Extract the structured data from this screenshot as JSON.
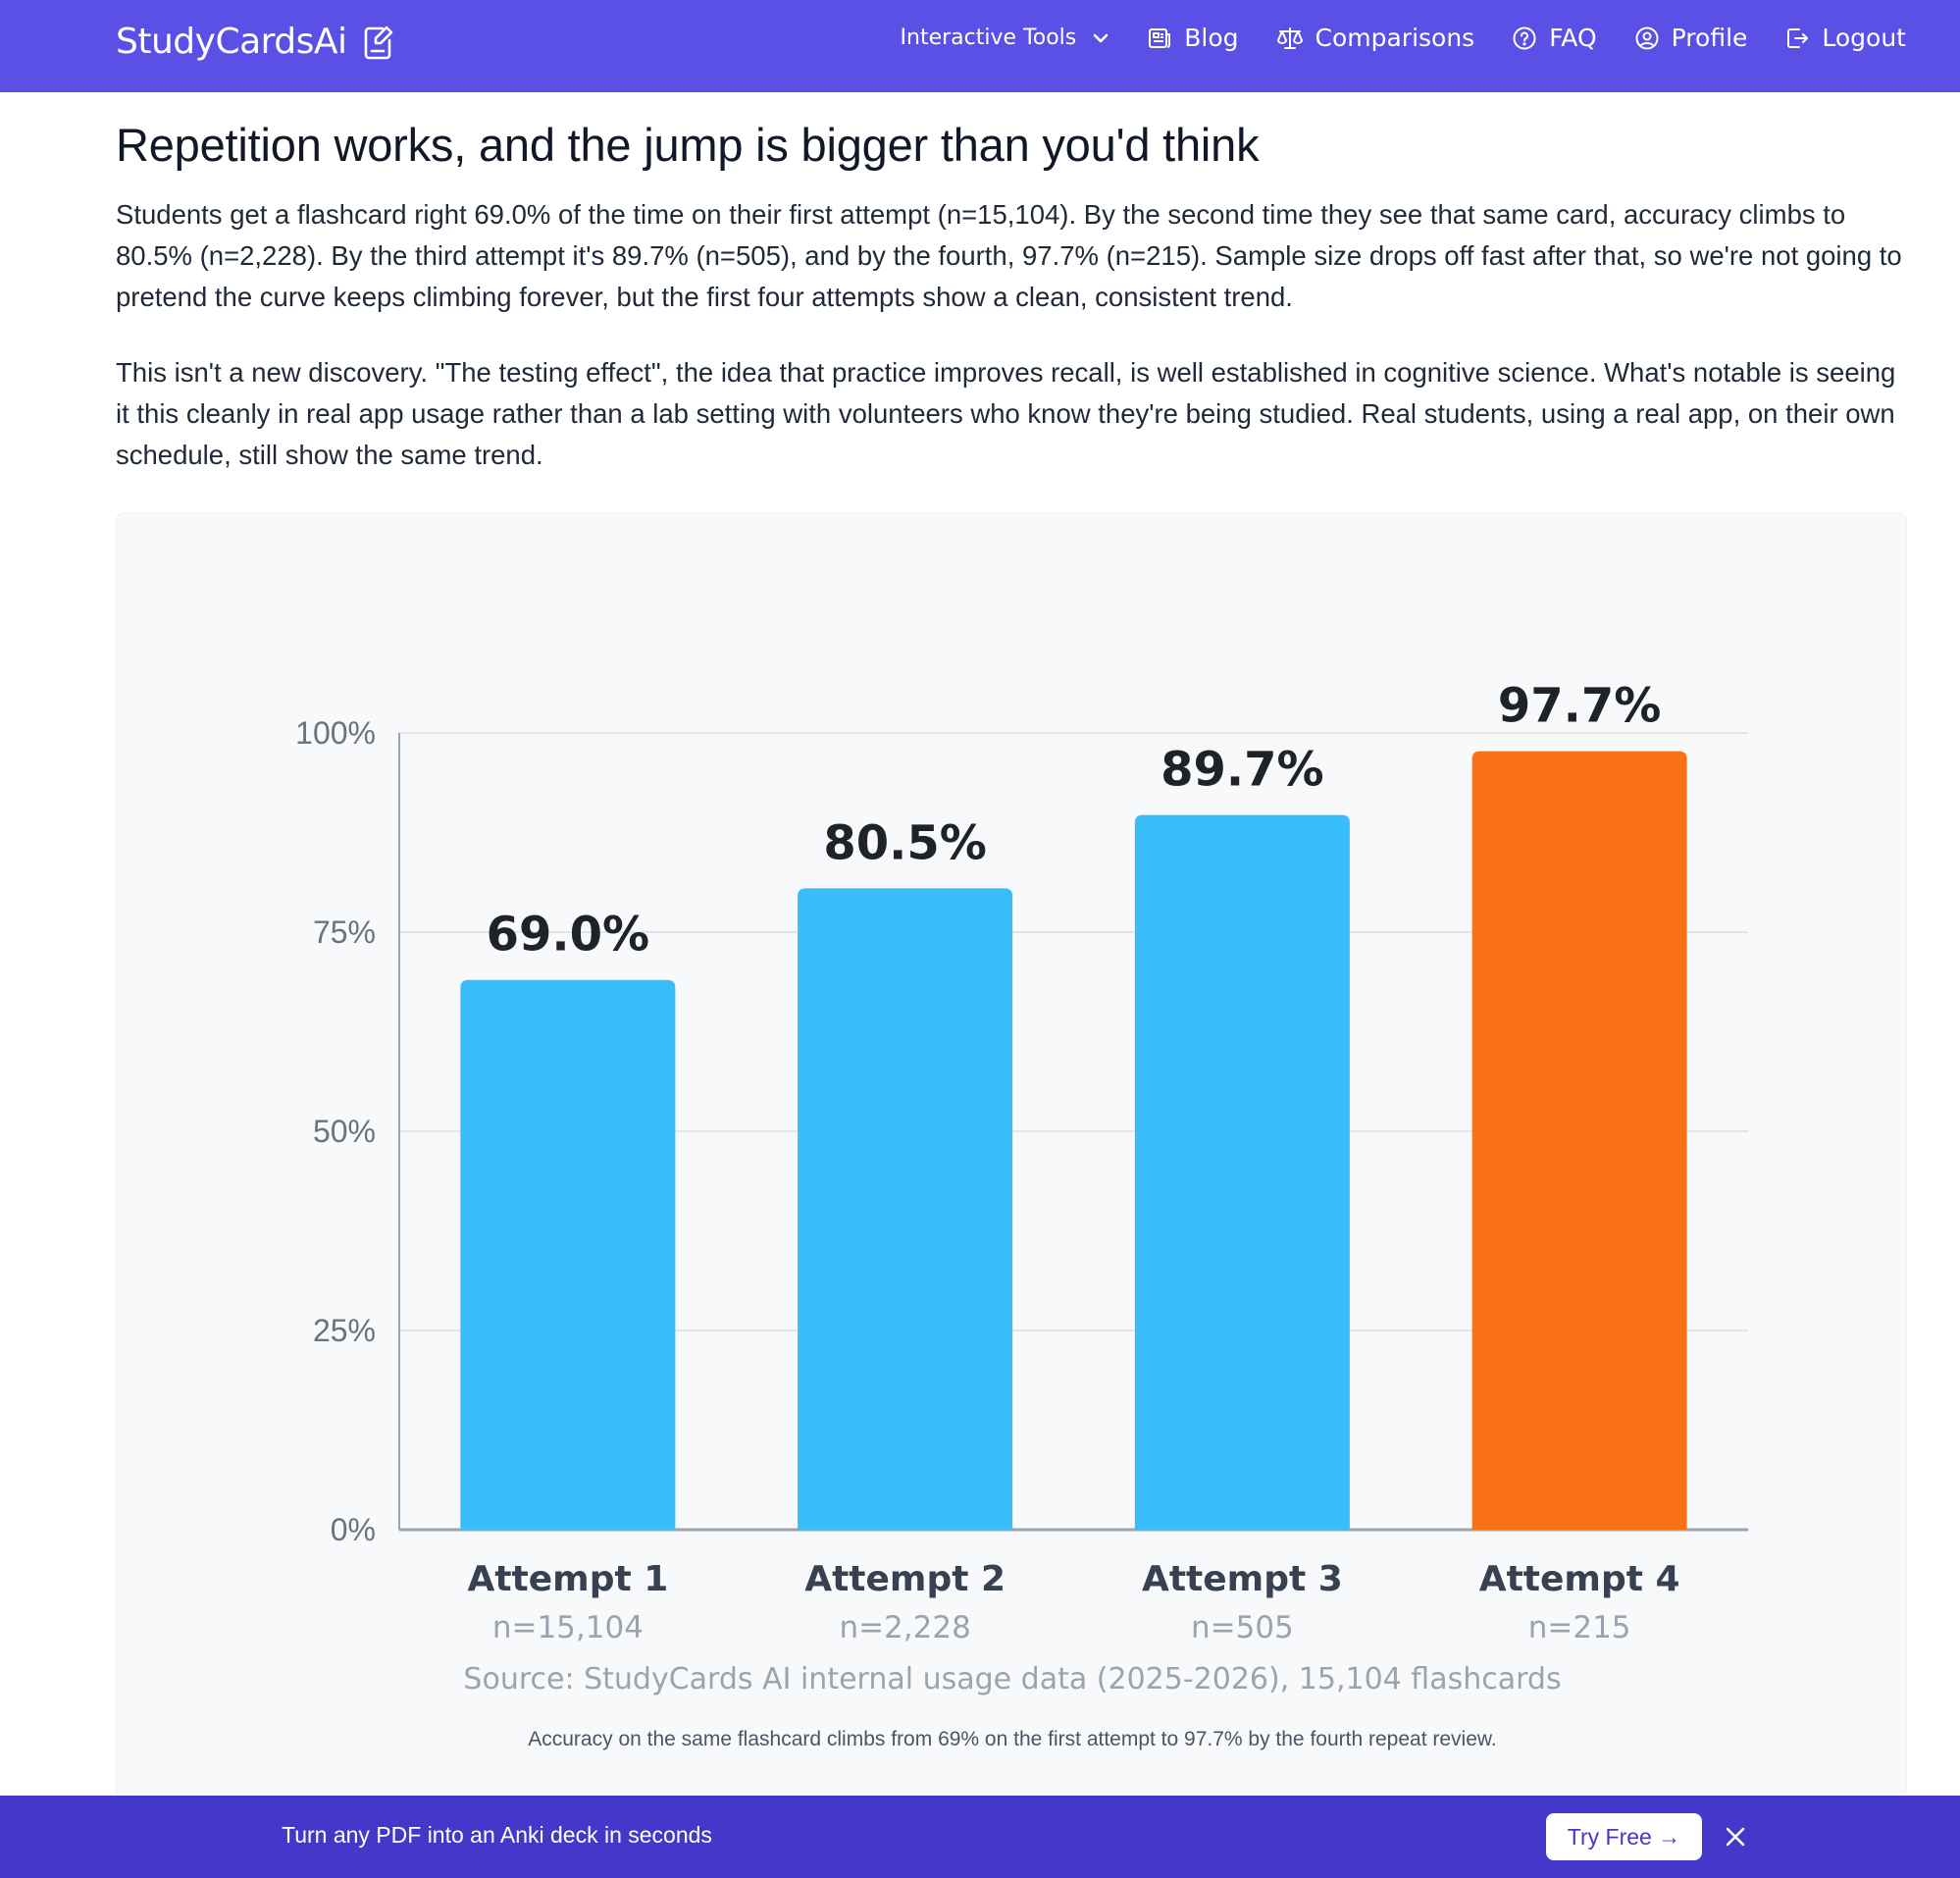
{
  "nav": {
    "brand": "StudyCardsAi",
    "items": [
      {
        "label": "Interactive Tools",
        "icon": "chevron-down-icon"
      },
      {
        "label": "Blog",
        "icon": "newspaper-icon"
      },
      {
        "label": "Comparisons",
        "icon": "scale-icon"
      },
      {
        "label": "FAQ",
        "icon": "question-circle-icon"
      },
      {
        "label": "Profile",
        "icon": "user-circle-icon"
      },
      {
        "label": "Logout",
        "icon": "logout-icon"
      }
    ],
    "bg_color": "#5b50e6"
  },
  "article": {
    "title": "Repetition works, and the jump is bigger than you'd think",
    "paragraphs": [
      "Students get a flashcard right 69.0% of the time on their first attempt (n=15,104). By the second time they see that same card, accuracy climbs to 80.5% (n=2,228). By the third attempt it's 89.7% (n=505), and by the fourth, 97.7% (n=215). Sample size drops off fast after that, so we're not going to pretend the curve keeps climbing forever, but the first four attempts show a clean, consistent trend.",
      "This isn't a new discovery. \"The testing effect\", the idea that practice improves recall, is well established in cognitive science. What's notable is seeing it this cleanly in real app usage rather than a lab setting with volunteers who know they're being studied. Real students, using a real app, on their own schedule, still show the same trend."
    ]
  },
  "chart_data": {
    "type": "bar",
    "categories": [
      "Attempt 1",
      "Attempt 2",
      "Attempt 3",
      "Attempt 4"
    ],
    "sample_sizes": [
      "n=15,104",
      "n=2,228",
      "n=505",
      "n=215"
    ],
    "values": [
      69.0,
      80.5,
      89.7,
      97.7
    ],
    "value_labels": [
      "69.0%",
      "80.5%",
      "89.7%",
      "97.7%"
    ],
    "ylim": [
      0,
      100
    ],
    "yticks": [
      0,
      25,
      50,
      75,
      100
    ],
    "ytick_labels": [
      "0%",
      "25%",
      "50%",
      "75%",
      "100%"
    ],
    "bar_colors": [
      "#38bdf8",
      "#38bdf8",
      "#38bdf8",
      "#f97316"
    ],
    "source": "Source: StudyCards AI internal usage data (2025-2026), 15,104 flashcards",
    "grid": true
  },
  "chart_caption": "Accuracy on the same flashcard climbs from 69% on the first attempt to 97.7% by the fourth repeat review.",
  "banner": {
    "text": "Turn any PDF into an Anki deck in seconds",
    "cta": "Try Free →",
    "bg_color": "#4338ca"
  }
}
